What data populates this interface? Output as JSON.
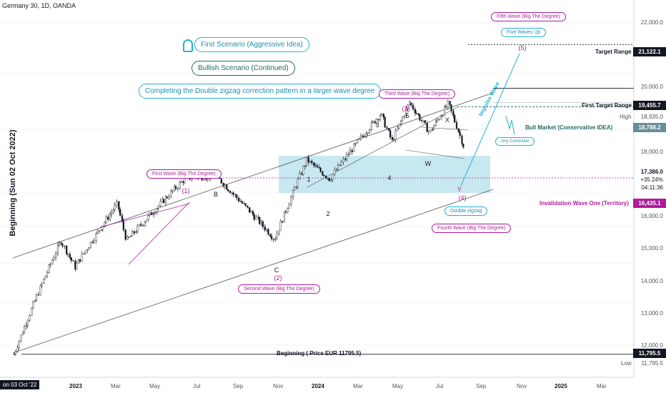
{
  "header": {
    "symbol": "Germany 30, 1D, OANDA"
  },
  "side_label": "Beginning (Sun 02 Oct 2022)",
  "annotations": {
    "first_scenario": "First Scenario (Aggressive Idea)",
    "bullish": "Bullish Scenario (Continued)",
    "completing": "Completing the Double zigzag correction pattern in a larger wave degree",
    "first_wave": "First Wave (Big The Degree)",
    "second_wave": "Second Wave (Big The Degree)",
    "third_wave": "Third Wave (Big The Degree)",
    "fourth_wave": "Fourth Wave (Big The Degree)",
    "fifth_wave": "Fifth Wave (Big The Degree)",
    "five_waves_up": "Five Waves Up",
    "double_zigzag": "Double zigzag",
    "any_corrective": "Any Corrective",
    "impulse_wave": "Impulse Wave",
    "target_range": "Target Range",
    "first_target_range": "First Target Range",
    "high": "High",
    "bull_market": "Bull Market (Conservative IDEA)",
    "invalidation": "Invalidation Wave One (Territory)",
    "beginning_price": "Beginning ( Price EUR 11795.5)",
    "low": "Low"
  },
  "price_axis": {
    "ticks": [
      "22,000.0",
      "20,000.0",
      "18,000.0",
      "16,000.0",
      "15,000.0",
      "14,000.0",
      "13,000.0",
      "12,000.0"
    ],
    "tags": {
      "target": "21,122.1",
      "first_target": "19,455.7",
      "high": "18,935.0",
      "bull_market": "18,788.2",
      "last": "17,386.0",
      "change": "+35.24%",
      "countdown": "04:11:36",
      "invalidation": "16,435.1",
      "beginning": "11,795.5",
      "low": "11,795.5"
    }
  },
  "time_axis": {
    "current_date": "on 03 Oct '22",
    "labels": [
      "2023",
      "Mar",
      "May",
      "Jul",
      "Sep",
      "Nov",
      "2024",
      "Mar",
      "May",
      "Jul",
      "Sep",
      "Nov",
      "2025",
      "Mar"
    ]
  },
  "wave_labels": {
    "main": [
      "(1)",
      "(2)",
      "(3)",
      "(4)",
      "(5)"
    ],
    "minor": [
      "1",
      "2",
      "3",
      "4",
      "5",
      "B",
      "C",
      "X",
      "W",
      "Y"
    ]
  },
  "colors": {
    "pink": "#b01a9b",
    "cyan": "#22b2d6",
    "green": "#1d6c5f",
    "zone": "#b6e0ec",
    "candle": "#131722",
    "target_tag": "#131722",
    "bull_tag": "#6a8e96",
    "invalid_tag": "#b01a9b"
  },
  "chart_data": {
    "type": "candlestick",
    "title": "Germany 30, 1D, OANDA",
    "y_scale": "log",
    "ylim": [
      11500,
      23000
    ],
    "x_range": [
      "2022-10-01",
      "2025-04-01"
    ],
    "approx_close_path": [
      {
        "date": "2022-10-03",
        "close": 11795.5
      },
      {
        "date": "2022-12-12",
        "close": 14600
      },
      {
        "date": "2023-01-02",
        "close": 13900
      },
      {
        "date": "2023-03-06",
        "close": 15650
      },
      {
        "date": "2023-03-20",
        "close": 14600
      },
      {
        "date": "2023-06-16",
        "close": 16435.1
      },
      {
        "date": "2023-07-31",
        "close": 16500
      },
      {
        "date": "2023-10-27",
        "close": 14650
      },
      {
        "date": "2023-12-14",
        "close": 17000
      },
      {
        "date": "2024-01-17",
        "close": 16400
      },
      {
        "date": "2024-04-02",
        "close": 18550
      },
      {
        "date": "2024-04-19",
        "close": 17600
      },
      {
        "date": "2024-05-15",
        "close": 18935
      },
      {
        "date": "2024-06-14",
        "close": 17900
      },
      {
        "date": "2024-07-12",
        "close": 18900
      },
      {
        "date": "2024-08-05",
        "close": 17386
      }
    ],
    "levels": [
      {
        "label": "Target Range",
        "value": 21122.1
      },
      {
        "label": "First Target Range",
        "value": 19455.7
      },
      {
        "label": "High",
        "value": 18935.0
      },
      {
        "label": "Bull Market (Conservative IDEA)",
        "value": 18788.2
      },
      {
        "label": "Invalidation Wave One (Territory)",
        "value": 16435.1
      },
      {
        "label": "Beginning ( Price EUR 11795.5)",
        "value": 11795.5
      }
    ]
  }
}
